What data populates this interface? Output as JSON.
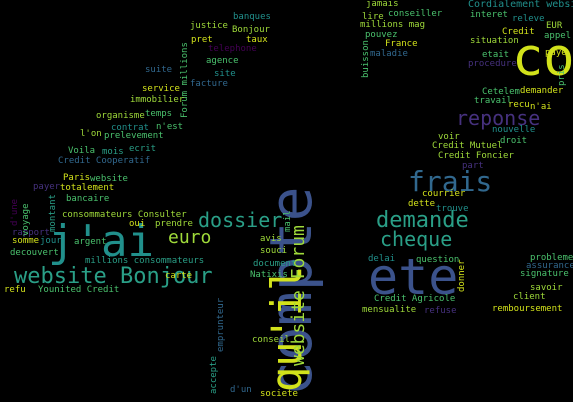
{
  "colors": {
    "background": "#000000",
    "yellow": "#d2e21b",
    "lime": "#9fda3a",
    "green": "#4ac16d",
    "teal": "#2a9f87",
    "cyan": "#21908c",
    "blue": "#31688e",
    "navy": "#3b528b",
    "indigo": "#46317e",
    "purple": "#440154"
  },
  "words": [
    {
      "text": "compte"
    },
    {
      "text": "j'ai"
    },
    {
      "text": "ete"
    },
    {
      "text": "co"
    },
    {
      "text": "qu'il"
    },
    {
      "text": "frais"
    },
    {
      "text": "demande"
    },
    {
      "text": "website Bonjour"
    },
    {
      "text": "dossier"
    },
    {
      "text": "reponse"
    },
    {
      "text": "cheque"
    },
    {
      "text": "euro"
    },
    {
      "text": "website Forum"
    },
    {
      "text": "Cordialement website"
    },
    {
      "text": "Credit Agricole"
    },
    {
      "text": "remboursement"
    },
    {
      "text": "millions consommateurs"
    },
    {
      "text": "consommateurs Consulter"
    },
    {
      "text": "Forum millions"
    },
    {
      "text": "Credit Cooperatif"
    },
    {
      "text": "Credit Foncier"
    },
    {
      "text": "Credit Mutuel"
    },
    {
      "text": "Younited Credit"
    },
    {
      "text": "organisme"
    },
    {
      "text": "immobilier"
    },
    {
      "text": "prelevement"
    },
    {
      "text": "justice"
    },
    {
      "text": "telephone"
    },
    {
      "text": "banques"
    },
    {
      "text": "Bonjour"
    },
    {
      "text": "taux"
    },
    {
      "text": "pret"
    },
    {
      "text": "agence"
    },
    {
      "text": "site"
    },
    {
      "text": "facture"
    },
    {
      "text": "suite"
    },
    {
      "text": "service"
    },
    {
      "text": "temps"
    },
    {
      "text": "n'est"
    },
    {
      "text": "contrat"
    },
    {
      "text": "l'on"
    },
    {
      "text": "ecrit"
    },
    {
      "text": "mois"
    },
    {
      "text": "Voila"
    },
    {
      "text": "Paris"
    },
    {
      "text": "website"
    },
    {
      "text": "payer"
    },
    {
      "text": "totalement"
    },
    {
      "text": "bancaire"
    },
    {
      "text": "montant"
    },
    {
      "text": "rapport"
    },
    {
      "text": "decouvert"
    },
    {
      "text": "argent"
    },
    {
      "text": "refu"
    },
    {
      "text": "oui"
    },
    {
      "text": "prendre"
    },
    {
      "text": "carte"
    },
    {
      "text": "accepte"
    },
    {
      "text": "emprunteur"
    },
    {
      "text": "document"
    },
    {
      "text": "conseil"
    },
    {
      "text": "d'un"
    },
    {
      "text": "societe"
    },
    {
      "text": "Natixis"
    },
    {
      "text": "souci"
    },
    {
      "text": "avis"
    },
    {
      "text": "mail"
    },
    {
      "text": "jamais"
    },
    {
      "text": "conseiller"
    },
    {
      "text": "lire"
    },
    {
      "text": "millions mag"
    },
    {
      "text": "France"
    },
    {
      "text": "pouvez"
    },
    {
      "text": "maladie"
    },
    {
      "text": "buisson"
    },
    {
      "text": "interet"
    },
    {
      "text": "releve"
    },
    {
      "text": "Credit"
    },
    {
      "text": "situation"
    },
    {
      "text": "appel"
    },
    {
      "text": "EUR"
    },
    {
      "text": "paye"
    },
    {
      "text": "procedure"
    },
    {
      "text": "etait"
    },
    {
      "text": "Cetelem"
    },
    {
      "text": "demander"
    },
    {
      "text": "travail"
    },
    {
      "text": "recu"
    },
    {
      "text": "n'ai"
    },
    {
      "text": "pris"
    },
    {
      "text": "nouvelle"
    },
    {
      "text": "droit"
    },
    {
      "text": "voir"
    },
    {
      "text": "part"
    },
    {
      "text": "courrier"
    },
    {
      "text": "dette"
    },
    {
      "text": "trouve"
    },
    {
      "text": "delai"
    },
    {
      "text": "question"
    },
    {
      "text": "donner"
    },
    {
      "text": "mensualite"
    },
    {
      "text": "refuse"
    },
    {
      "text": "probleme"
    },
    {
      "text": "assurance"
    },
    {
      "text": "signature"
    },
    {
      "text": "savoir"
    },
    {
      "text": "client"
    },
    {
      "text": "voyage"
    },
    {
      "text": "d'une"
    },
    {
      "text": "somme"
    },
    {
      "text": "jour"
    }
  ]
}
